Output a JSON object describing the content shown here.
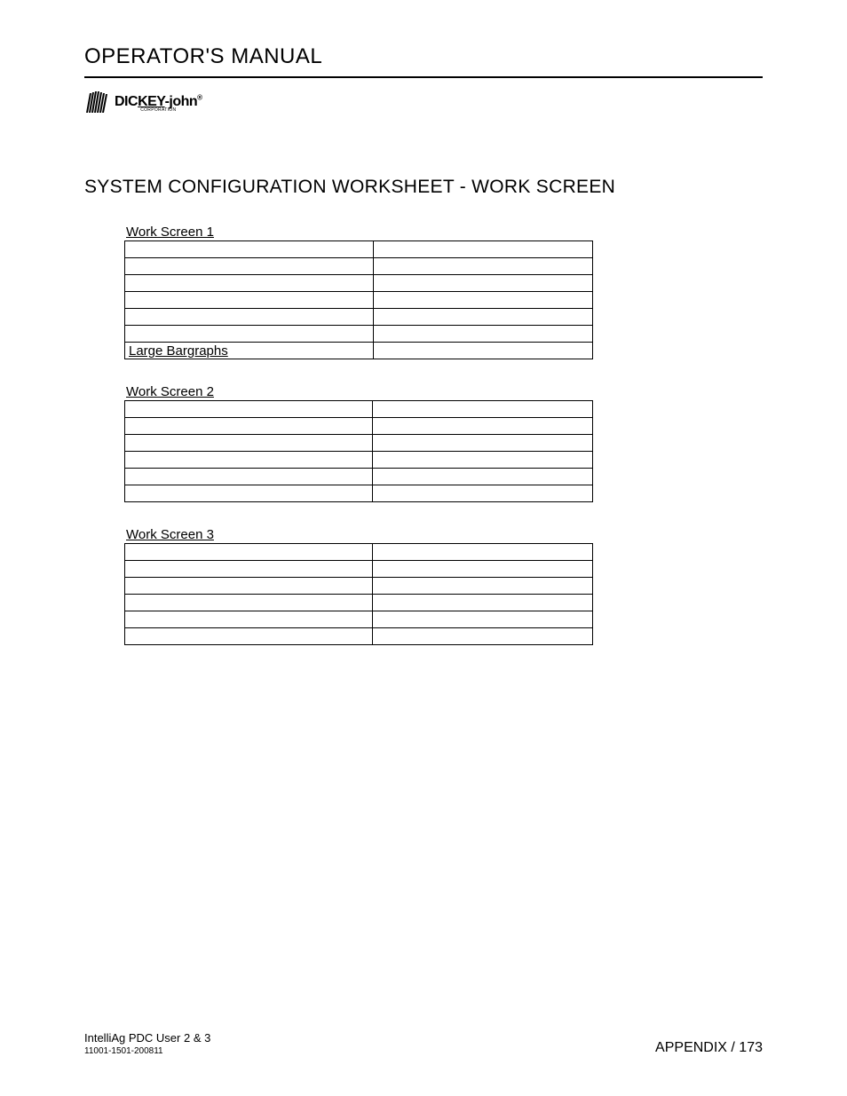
{
  "header": {
    "title": "OPERATOR'S MANUAL"
  },
  "logo": {
    "brand_prefix": "DIC",
    "brand_key": "KEY",
    "brand_hyphen": "-",
    "brand_suffix": "john",
    "registered": "®",
    "subtitle": "CORPORATION"
  },
  "section": {
    "title": "SYSTEM CONFIGURATION WORKSHEET - WORK SCREEN"
  },
  "tables": [
    {
      "caption": "Work Screen 1",
      "rows": [
        [
          "",
          ""
        ],
        [
          "",
          ""
        ],
        [
          "",
          ""
        ],
        [
          "",
          ""
        ],
        [
          "",
          ""
        ],
        [
          "",
          ""
        ],
        [
          "Large Bargraphs",
          ""
        ]
      ]
    },
    {
      "caption": "Work Screen 2",
      "rows": [
        [
          "",
          ""
        ],
        [
          "",
          ""
        ],
        [
          "",
          ""
        ],
        [
          "",
          ""
        ],
        [
          "",
          ""
        ],
        [
          "",
          ""
        ]
      ]
    },
    {
      "caption": "Work Screen 3",
      "rows": [
        [
          "",
          ""
        ],
        [
          "",
          ""
        ],
        [
          "",
          ""
        ],
        [
          "",
          ""
        ],
        [
          "",
          ""
        ],
        [
          "",
          ""
        ]
      ]
    }
  ],
  "footer": {
    "product": "IntelliAg PDC User 2 & 3",
    "document_number": "11001-1501-200811",
    "section": "APPENDIX / 173"
  }
}
